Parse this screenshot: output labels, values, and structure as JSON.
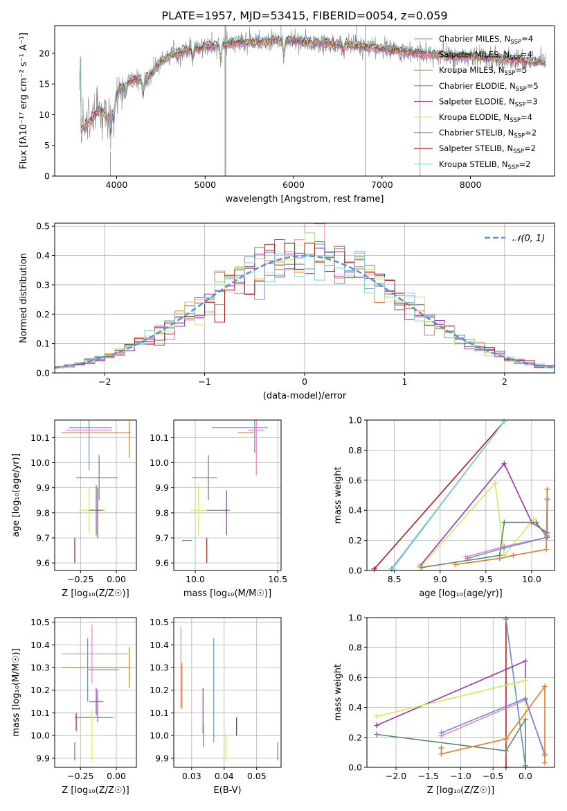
{
  "figure_title": "PLATE=1957, MJD=53415, FIBERID=0054, z=0.059",
  "colors": {
    "chabrier_miles": "#6b8ed6",
    "salpeter_miles": "#ee82c4",
    "kroupa_miles": "#e07b28",
    "chabrier_elodie": "#5a8a64",
    "salpeter_elodie": "#9b34b4",
    "kroupa_elodie": "#cfee5a",
    "chabrier_stelib": "#707070",
    "salpeter_stelib": "#b01c1c",
    "kroupa_stelib": "#86d6d6",
    "data": "#808080",
    "gaussian": "#5b8ed8",
    "grid": "#b0b0b0"
  },
  "chart_data": [
    {
      "id": "spectrum",
      "type": "line",
      "title": "PLATE=1957, MJD=53415, FIBERID=0054, z=0.059",
      "xlabel": "wavelength [Angstrom, rest frame]",
      "ylabel": "Flux [fλ10⁻¹⁷ erg cm⁻² s⁻¹ A⁻¹]",
      "xlim": [
        3300,
        8950
      ],
      "ylim": [
        0,
        24.5
      ],
      "xticks": [
        4000,
        5000,
        6000,
        7000,
        8000
      ],
      "yticks": [
        0,
        5,
        10,
        15,
        20
      ],
      "grid": false,
      "legend_position": "right",
      "continuum": {
        "x": [
          3600,
          3700,
          3800,
          3900,
          4000,
          4100,
          4200,
          4300,
          4400,
          4500,
          4600,
          4800,
          5000,
          5200,
          5400,
          5600,
          5800,
          6000,
          6200,
          6400,
          6600,
          6800,
          7000,
          7200,
          7400,
          7600,
          7800,
          8000,
          8200,
          8400,
          8600,
          8800
        ],
        "y": [
          7.5,
          9.0,
          11.0,
          9.5,
          13.5,
          15.0,
          15.8,
          15.5,
          16.8,
          18.8,
          19.6,
          20.6,
          21.0,
          21.4,
          21.9,
          21.8,
          22.1,
          22.0,
          21.7,
          21.6,
          21.4,
          21.1,
          20.8,
          20.4,
          20.1,
          19.8,
          19.5,
          19.6,
          19.3,
          19.1,
          18.8,
          18.6
        ]
      },
      "series": [
        {
          "name": "Chabrier MILES, N_SSP=4",
          "name_main": "Chabrier MILES, N",
          "name_sub": "SSP",
          "name_tail": "=4",
          "color": "#6b8ed6"
        },
        {
          "name": "Salpeter MILES, N_SSP=4",
          "name_main": "Salpeter MILES, N",
          "name_sub": "SSP",
          "name_tail": "=4",
          "color": "#ee82c4"
        },
        {
          "name": "Kroupa MILES, N_SSP=5",
          "name_main": "Kroupa MILES, N",
          "name_sub": "SSP",
          "name_tail": "=5",
          "color": "#e07b28"
        },
        {
          "name": "Chabrier ELODIE, N_SSP=5",
          "name_main": "Chabrier ELODIE, N",
          "name_sub": "SSP",
          "name_tail": "=5",
          "color": "#5a8a64"
        },
        {
          "name": "Salpeter ELODIE, N_SSP=3",
          "name_main": "Salpeter ELODIE, N",
          "name_sub": "SSP",
          "name_tail": "=3",
          "color": "#9b34b4"
        },
        {
          "name": "Kroupa ELODIE, N_SSP=4",
          "name_main": "Kroupa ELODIE, N",
          "name_sub": "SSP",
          "name_tail": "=4",
          "color": "#cfee5a"
        },
        {
          "name": "Chabrier STELIB, N_SSP=2",
          "name_main": "Chabrier STELIB, N",
          "name_sub": "SSP",
          "name_tail": "=2",
          "color": "#707070"
        },
        {
          "name": "Salpeter STELIB, N_SSP=2",
          "name_main": "Salpeter STELIB, N",
          "name_sub": "SSP",
          "name_tail": "=2",
          "color": "#b01c1c"
        },
        {
          "name": "Kroupa STELIB, N_SSP=2",
          "name_main": "Kroupa STELIB, N",
          "name_sub": "SSP",
          "name_tail": "=2",
          "color": "#86d6d6"
        }
      ]
    },
    {
      "id": "residuals",
      "type": "line",
      "xlabel": "(data-model)/error",
      "ylabel": "Normed distribution",
      "xlim": [
        -2.5,
        2.5
      ],
      "ylim": [
        0,
        0.51
      ],
      "xticks": [
        -2,
        -1,
        0,
        1,
        2
      ],
      "yticks": [
        0.0,
        0.1,
        0.2,
        0.3,
        0.4,
        0.5
      ],
      "grid": true,
      "legend_position": "upper right",
      "legend_label": "𝒩(0, 1)",
      "bins": 50
    },
    {
      "id": "age_vs_Z",
      "type": "scatter",
      "xlabel": "Z [log₁₀(Z/Z☉)]",
      "ylabel": "age  [log₁₀(age/yr)]",
      "xlim": [
        -0.43,
        0.14
      ],
      "ylim": [
        9.57,
        10.17
      ],
      "xticks": [
        -0.25,
        0.0
      ],
      "yticks": [
        9.6,
        9.7,
        9.8,
        9.9,
        10.0,
        10.1
      ],
      "grid": true,
      "points": [
        {
          "x": -0.19,
          "y": 10.14,
          "xerr": [
            0.0,
            0.0
          ],
          "yerr": 0.17,
          "color": "#6b8ed6"
        },
        {
          "x": -0.15,
          "y": 10.14,
          "xerr": [
            0.0,
            0.0
          ],
          "yerr": 0.0,
          "color": "#6b8ed6",
          "hline": [
            -0.18,
            0.12
          ]
        },
        {
          "x": -0.17,
          "y": 10.13,
          "xerr": [
            0.18,
            0.14
          ],
          "yerr": 0.0,
          "color": "#ee82c4"
        },
        {
          "x": -0.16,
          "y": 10.12,
          "xerr": [
            0.22,
            0.26
          ],
          "yerr": 0.0,
          "color": "#e07b28"
        },
        {
          "x": 0.09,
          "y": 10.12,
          "xerr": [
            0.0,
            0.0
          ],
          "yerr": 0.1,
          "color": "#e07b28"
        },
        {
          "x": -0.12,
          "y": 9.94,
          "xerr": [
            0.16,
            0.13
          ],
          "yerr": 0.09,
          "color": "#5a8a64"
        },
        {
          "x": -0.16,
          "y": 9.81,
          "xerr": [
            0.1,
            0.09
          ],
          "yerr": 0.0,
          "color": "#cfee5a"
        },
        {
          "x": -0.19,
          "y": 9.81,
          "xerr": [
            0.0,
            0.0
          ],
          "yerr": 0.09,
          "color": "#cfee5a"
        },
        {
          "x": -0.14,
          "y": 9.81,
          "xerr": [
            0.05,
            0.05
          ],
          "yerr": 0.1,
          "color": "#707070"
        },
        {
          "x": -0.13,
          "y": 9.8,
          "xerr": [
            0.0,
            0.0
          ],
          "yerr": 0.1,
          "color": "#9b34b4"
        },
        {
          "x": -0.29,
          "y": 9.65,
          "xerr": [
            0.0,
            0.0
          ],
          "yerr": 0.05,
          "color": "#b01c1c"
        }
      ]
    },
    {
      "id": "age_vs_mass",
      "type": "scatter",
      "xlabel": "mass [log₁₀(M/M☉)]",
      "ylabel": "",
      "xlim": [
        9.87,
        10.52
      ],
      "ylim": [
        9.57,
        10.17
      ],
      "xticks": [
        10.0,
        10.5
      ],
      "yticks": [
        9.6,
        9.7,
        9.8,
        9.9,
        10.0,
        10.1
      ],
      "grid": true,
      "points": [
        {
          "x": 10.28,
          "y": 10.14,
          "xerr": [
            0.18,
            0.16
          ],
          "yerr": 0.0,
          "color": "#6b8ed6"
        },
        {
          "x": 10.36,
          "y": 10.14,
          "xerr": [
            0.0,
            0.0
          ],
          "yerr": 0.1,
          "color": "#6b8ed6"
        },
        {
          "x": 10.37,
          "y": 10.13,
          "xerr": [
            0.05,
            0.05
          ],
          "yerr": 0.18,
          "color": "#ee82c4"
        },
        {
          "x": 10.31,
          "y": 10.12,
          "xerr": [
            0.05,
            0.05
          ],
          "yerr": 0.0,
          "color": "#e07b28"
        },
        {
          "x": 10.08,
          "y": 9.94,
          "xerr": [
            0.1,
            0.05
          ],
          "yerr": 0.09,
          "color": "#5a8a64"
        },
        {
          "x": 10.02,
          "y": 9.81,
          "xerr": [
            0.05,
            0.05
          ],
          "yerr": 0.1,
          "color": "#cfee5a"
        },
        {
          "x": 10.14,
          "y": 9.81,
          "xerr": [
            0.07,
            0.07
          ],
          "yerr": 0.0,
          "color": "#707070"
        },
        {
          "x": 10.19,
          "y": 9.8,
          "xerr": [
            0.0,
            0.0
          ],
          "yerr": 0.09,
          "color": "#9b34b4"
        },
        {
          "x": 9.98,
          "y": 9.69,
          "xerr": [
            0.06,
            0.0
          ],
          "yerr": 0.0,
          "color": "#707070"
        },
        {
          "x": 10.07,
          "y": 9.65,
          "xerr": [
            0.0,
            0.0
          ],
          "yerr": 0.05,
          "color": "#b01c1c"
        }
      ]
    },
    {
      "id": "weight_vs_age",
      "type": "line",
      "xlabel": "age  [log₁₀(age/yr)]",
      "ylabel": "mass weight",
      "xlim": [
        8.2,
        10.25
      ],
      "ylim": [
        0,
        1.0
      ],
      "xticks": [
        8.5,
        9.0,
        9.5,
        10.0
      ],
      "yticks": [
        0.0,
        0.2,
        0.4,
        0.6,
        0.8,
        1.0
      ],
      "grid": true,
      "lines": [
        {
          "color": "#b01c1c",
          "x": [
            8.28,
            9.7
          ],
          "y": [
            0.01,
            0.99
          ]
        },
        {
          "color": "#6b8ed6",
          "x": [
            8.47,
            9.7
          ],
          "y": [
            0.01,
            0.99
          ]
        },
        {
          "color": "#86d6d6",
          "x": [
            8.48,
            9.7
          ],
          "y": [
            0.01,
            0.99
          ]
        },
        {
          "color": "#9b34b4",
          "x": [
            8.78,
            9.7,
            10.0,
            10.17
          ],
          "y": [
            0.03,
            0.71,
            0.32,
            0.25
          ]
        },
        {
          "color": "#cfee5a",
          "x": [
            8.78,
            9.6,
            9.7,
            10.02
          ],
          "y": [
            0.02,
            0.58,
            0.1,
            0.34
          ]
        },
        {
          "color": "#5a8a64",
          "x": [
            8.8,
            9.65,
            9.7,
            10.05,
            10.17,
            10.17
          ],
          "y": [
            0.02,
            0.1,
            0.32,
            0.32,
            0.22,
            0.23
          ]
        },
        {
          "color": "#ee82c4",
          "x": [
            9.28,
            9.7,
            10.17,
            10.17
          ],
          "y": [
            0.09,
            0.16,
            0.22,
            0.48
          ]
        },
        {
          "color": "#6b8ed6",
          "x": [
            9.3,
            9.7,
            10.17,
            10.17
          ],
          "y": [
            0.08,
            0.15,
            0.22,
            0.47
          ]
        },
        {
          "color": "#e07b28",
          "x": [
            9.17,
            9.65,
            9.8,
            10.16,
            10.17
          ],
          "y": [
            0.04,
            0.08,
            0.1,
            0.14,
            0.54
          ]
        }
      ]
    },
    {
      "id": "mass_vs_Z",
      "type": "scatter",
      "xlabel": "Z [log₁₀(Z/Z☉)]",
      "ylabel": "mass [log₁₀(M/M☉)]",
      "xlim": [
        -0.43,
        0.14
      ],
      "ylim": [
        9.86,
        10.52
      ],
      "xticks": [
        -0.25,
        0.0
      ],
      "yticks": [
        9.9,
        10.0,
        10.1,
        10.2,
        10.3,
        10.4,
        10.5
      ],
      "grid": true,
      "points": [
        {
          "x": -0.17,
          "y": 10.36,
          "xerr": [
            0.21,
            0.25
          ],
          "yerr": 0.13,
          "color": "#ee82c4"
        },
        {
          "x": -0.14,
          "y": 10.3,
          "xerr": [
            0.24,
            0.24
          ],
          "yerr": 0.0,
          "color": "#e07b28"
        },
        {
          "x": 0.09,
          "y": 10.3,
          "xerr": [
            0.0,
            0.0
          ],
          "yerr": 0.09,
          "color": "#e07b28"
        },
        {
          "x": -0.15,
          "y": 10.29,
          "xerr": [
            0.05,
            0.17
          ],
          "yerr": 0.0,
          "color": "#6b8ed6"
        },
        {
          "x": -0.2,
          "y": 10.29,
          "xerr": [
            0.0,
            0.0
          ],
          "yerr": 0.14,
          "color": "#6b8ed6"
        },
        {
          "x": -0.14,
          "y": 10.15,
          "xerr": [
            0.05,
            0.05
          ],
          "yerr": 0.06,
          "color": "#9b34b4"
        },
        {
          "x": -0.13,
          "y": 10.13,
          "xerr": [
            0.0,
            0.0
          ],
          "yerr": 0.07,
          "color": "#707070"
        },
        {
          "x": -0.12,
          "y": 10.08,
          "xerr": [
            0.17,
            0.1
          ],
          "yerr": 0.0,
          "color": "#5a8a64"
        },
        {
          "x": -0.28,
          "y": 10.06,
          "xerr": [
            0.0,
            0.0
          ],
          "yerr": 0.04,
          "color": "#b01c1c"
        },
        {
          "x": -0.17,
          "y": 10.0,
          "xerr": [
            0.09,
            0.09
          ],
          "yerr": 0.11,
          "color": "#cfee5a"
        },
        {
          "x": -0.29,
          "y": 9.93,
          "xerr": [
            0.0,
            0.0
          ],
          "yerr": 0.04,
          "color": "#707070"
        }
      ]
    },
    {
      "id": "mass_vs_ebv",
      "type": "scatter",
      "xlabel": "E(B-V)",
      "ylabel": "",
      "xlim": [
        0.0245,
        0.0575
      ],
      "ylim": [
        9.86,
        10.52
      ],
      "xticks": [
        0.03,
        0.04,
        0.05
      ],
      "yticks": [
        9.9,
        10.0,
        10.1,
        10.2,
        10.3,
        10.4,
        10.5
      ],
      "grid": true,
      "points": [
        {
          "x": 0.0267,
          "y": 10.3,
          "xerr": [
            0.0,
            0.0
          ],
          "yerr": 0.18,
          "color": "#ee82c4"
        },
        {
          "x": 0.027,
          "y": 10.22,
          "xerr": [
            0.0,
            0.0
          ],
          "yerr": 0.1,
          "color": "#e07b28"
        },
        {
          "x": 0.0368,
          "y": 10.2,
          "xerr": [
            0.0,
            0.0
          ],
          "yerr": 0.23,
          "color": "#6b8ed6"
        },
        {
          "x": 0.0335,
          "y": 10.11,
          "xerr": [
            0.0,
            0.0
          ],
          "yerr": 0.1,
          "color": "#9b34b4"
        },
        {
          "x": 0.0336,
          "y": 10.0,
          "xerr": [
            0.0,
            0.0
          ],
          "yerr": 0.05,
          "color": "#5a8a64"
        },
        {
          "x": 0.0405,
          "y": 9.95,
          "xerr": [
            0.0,
            0.0
          ],
          "yerr": 0.06,
          "color": "#cfee5a"
        },
        {
          "x": 0.0438,
          "y": 10.04,
          "xerr": [
            0.0,
            0.0
          ],
          "yerr": 0.04,
          "color": "#b01c1c"
        },
        {
          "x": 0.0565,
          "y": 9.93,
          "xerr": [
            0.0,
            0.0
          ],
          "yerr": 0.04,
          "color": "#707070"
        }
      ]
    },
    {
      "id": "weight_vs_Z",
      "type": "line",
      "xlabel": "Z [log₁₀(Z/Z☉)]",
      "ylabel": "mass weight",
      "xlim": [
        -2.45,
        0.45
      ],
      "ylim": [
        0,
        1.0
      ],
      "xticks": [
        -2.0,
        -1.5,
        -1.0,
        -0.5,
        0.0
      ],
      "yticks": [
        0.0,
        0.2,
        0.4,
        0.6,
        0.8,
        1.0
      ],
      "grid": true,
      "lines": [
        {
          "color": "#b01c1c",
          "x": [
            -0.3,
            -0.3
          ],
          "y": [
            0.0,
            0.99
          ]
        },
        {
          "color": "#86d6d6",
          "x": [
            -0.3,
            0.0
          ],
          "y": [
            0.99,
            0.01
          ]
        },
        {
          "color": "#6b8ed6",
          "x": [
            -0.3,
            0.0
          ],
          "y": [
            0.99,
            0.01
          ]
        },
        {
          "color": "#9b34b4",
          "x": [
            -2.3,
            0.0,
            0.0,
            0.3
          ],
          "y": [
            0.28,
            0.71,
            0.45,
            0.09
          ]
        },
        {
          "color": "#cfee5a",
          "x": [
            -2.3,
            0.0,
            0.0
          ],
          "y": [
            0.34,
            0.58,
            0.01
          ]
        },
        {
          "color": "#5a8a64",
          "x": [
            -2.3,
            -0.3,
            0.0,
            0.0
          ],
          "y": [
            0.22,
            0.11,
            0.32,
            0.01
          ]
        },
        {
          "color": "#ee82c4",
          "x": [
            -1.3,
            0.0,
            0.3
          ],
          "y": [
            0.21,
            0.45,
            0.09
          ]
        },
        {
          "color": "#6b8ed6",
          "x": [
            -1.3,
            0.0,
            0.3
          ],
          "y": [
            0.23,
            0.46,
            0.08
          ]
        },
        {
          "color": "#e07b28",
          "x": [
            -1.3,
            -1.3,
            -0.3,
            0.3,
            0.3
          ],
          "y": [
            0.13,
            0.09,
            0.19,
            0.54,
            0.03
          ]
        }
      ]
    }
  ]
}
